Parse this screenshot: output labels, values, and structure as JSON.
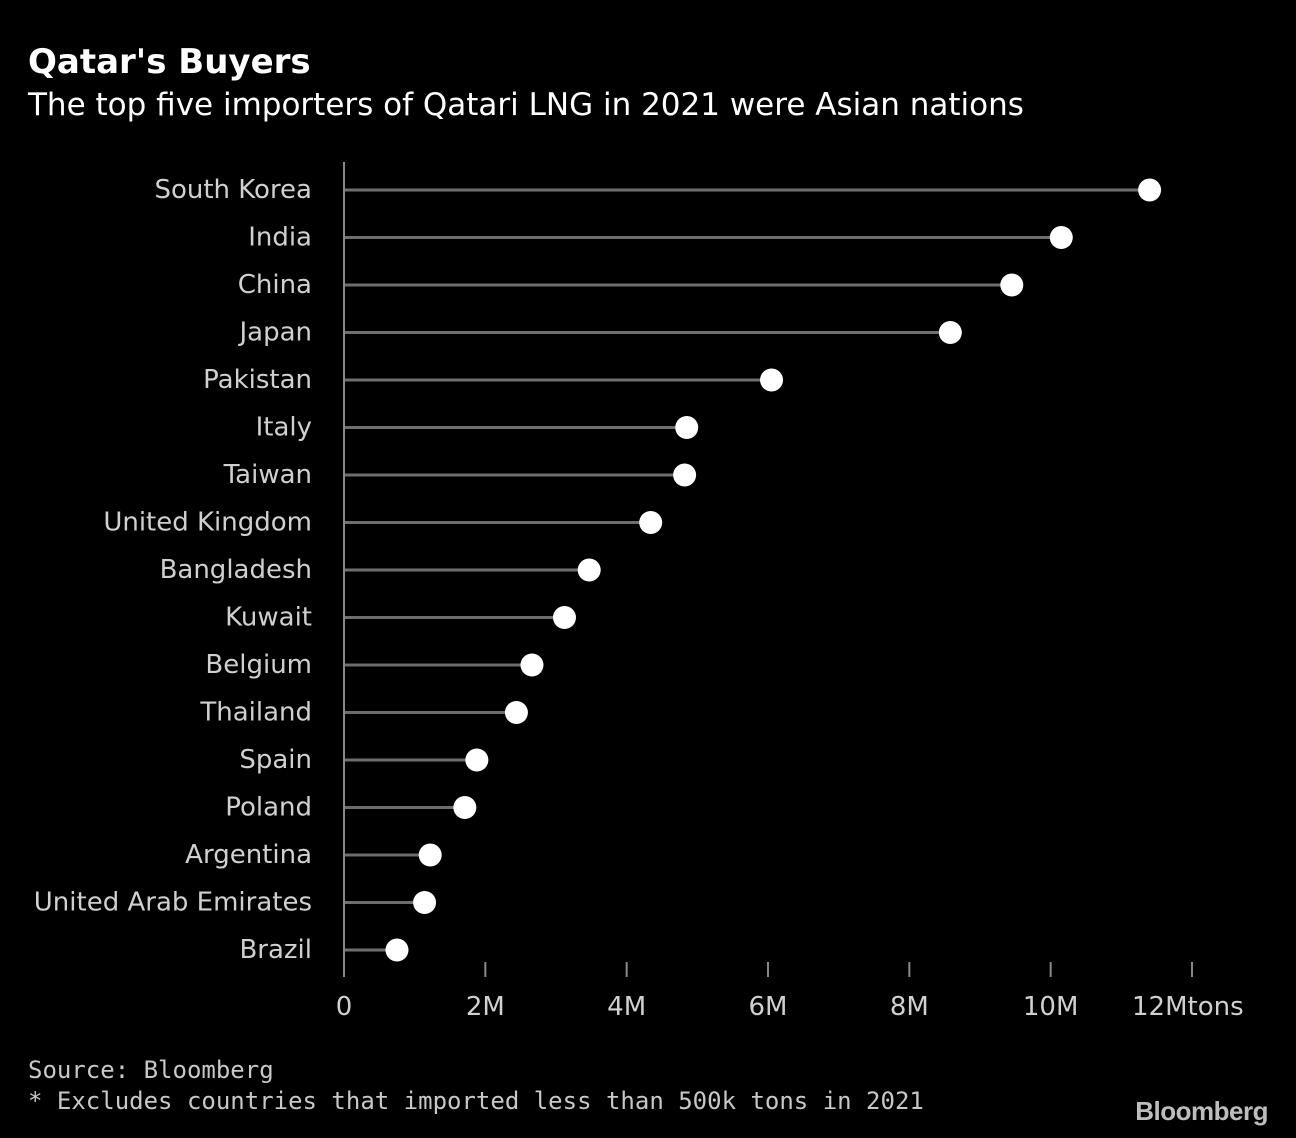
{
  "header": {
    "title": "Qatar's Buyers",
    "subtitle": "The top five importers of Qatari LNG in 2021 were Asian nations"
  },
  "footer": {
    "source": "Source: Bloomberg",
    "footnote": "* Excludes countries that imported less than 500k tons in 2021",
    "logo": "Bloomberg"
  },
  "colors": {
    "background": "#000000",
    "stem": "#6e6e6e",
    "dot": "#ffffff",
    "axis": "#8a8a8a",
    "label": "#d0d0d0"
  },
  "chart_data": {
    "type": "lollipop",
    "title": "Qatar's Buyers",
    "subtitle": "The top five importers of Qatari LNG in 2021 were Asian nations",
    "xlabel": "tons",
    "ylabel": "",
    "xlim": [
      0,
      12000000
    ],
    "x_ticks": [
      0,
      2000000,
      4000000,
      6000000,
      8000000,
      10000000,
      12000000
    ],
    "x_tick_labels": [
      "0",
      "2M",
      "4M",
      "6M",
      "8M",
      "10M",
      "12Mtons"
    ],
    "grid": false,
    "categories": [
      "South Korea",
      "India",
      "China",
      "Japan",
      "Pakistan",
      "Italy",
      "Taiwan",
      "United Kingdom",
      "Bangladesh",
      "Kuwait",
      "Belgium",
      "Thailand",
      "Spain",
      "Poland",
      "Argentina",
      "United Arab Emirates",
      "Brazil"
    ],
    "values": [
      11400000,
      10150000,
      9450000,
      8580000,
      6050000,
      4850000,
      4820000,
      4340000,
      3470000,
      3120000,
      2660000,
      2440000,
      1880000,
      1710000,
      1220000,
      1140000,
      750000
    ]
  }
}
